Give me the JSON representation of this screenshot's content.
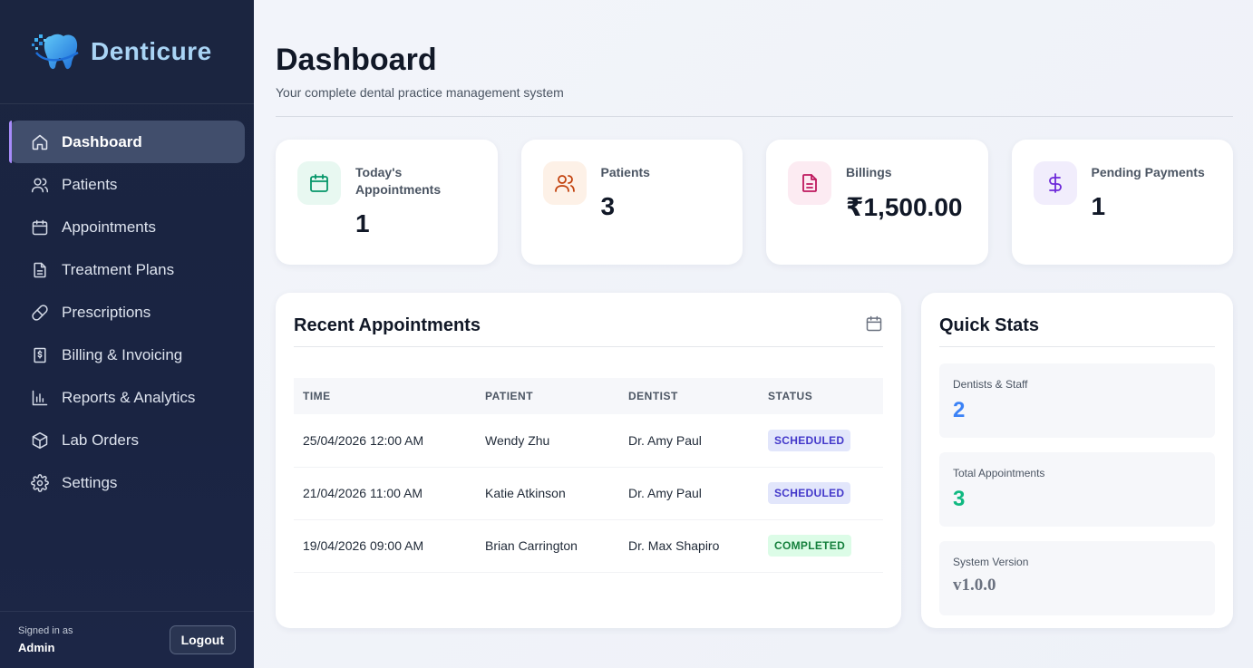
{
  "brand": {
    "name": "Denticure",
    "logo_icon": "tooth-logo-icon"
  },
  "sidebar": {
    "items": [
      {
        "label": "Dashboard",
        "icon": "home-icon",
        "active": true
      },
      {
        "label": "Patients",
        "icon": "users-icon"
      },
      {
        "label": "Appointments",
        "icon": "calendar-icon"
      },
      {
        "label": "Treatment Plans",
        "icon": "file-text-icon"
      },
      {
        "label": "Prescriptions",
        "icon": "pill-icon"
      },
      {
        "label": "Billing & Invoicing",
        "icon": "receipt-icon"
      },
      {
        "label": "Reports & Analytics",
        "icon": "bar-chart-icon"
      },
      {
        "label": "Lab Orders",
        "icon": "box-icon"
      },
      {
        "label": "Settings",
        "icon": "gear-icon"
      }
    ],
    "signed_in_label": "Signed in as",
    "signed_in_user": "Admin",
    "logout_label": "Logout"
  },
  "header": {
    "title": "Dashboard",
    "subtitle": "Your complete dental practice management system"
  },
  "cards": [
    {
      "label": "Today's Appointments",
      "value": "1",
      "icon": "calendar-icon",
      "color": "#059669",
      "bg": "#e8f8f1"
    },
    {
      "label": "Patients",
      "value": "3",
      "icon": "users-icon",
      "color": "#c2410c",
      "bg": "#fdf1e7"
    },
    {
      "label": "Billings",
      "value": "₹1,500.00",
      "icon": "file-text-icon",
      "color": "#be185d",
      "bg": "#fcebf2"
    },
    {
      "label": "Pending Payments",
      "value": "1",
      "icon": "dollar-icon",
      "color": "#6d28d9",
      "bg": "#f1edfc"
    }
  ],
  "recent": {
    "title": "Recent Appointments",
    "columns": [
      "TIME",
      "PATIENT",
      "DENTIST",
      "STATUS"
    ],
    "rows": [
      {
        "time": "25/04/2026 12:00 AM",
        "patient": "Wendy Zhu",
        "dentist": "Dr. Amy Paul",
        "status": "SCHEDULED"
      },
      {
        "time": "21/04/2026 11:00 AM",
        "patient": "Katie Atkinson",
        "dentist": "Dr. Amy Paul",
        "status": "SCHEDULED"
      },
      {
        "time": "19/04/2026 09:00 AM",
        "patient": "Brian Carrington",
        "dentist": "Dr. Max Shapiro",
        "status": "COMPLETED"
      }
    ]
  },
  "quick_stats": {
    "title": "Quick Stats",
    "items": [
      {
        "label": "Dentists & Staff",
        "value": "2",
        "color": "#3b82f6"
      },
      {
        "label": "Total Appointments",
        "value": "3",
        "color": "#10b981"
      },
      {
        "label": "System Version",
        "value": "v1.0.0",
        "color": "#6b7280"
      }
    ]
  }
}
